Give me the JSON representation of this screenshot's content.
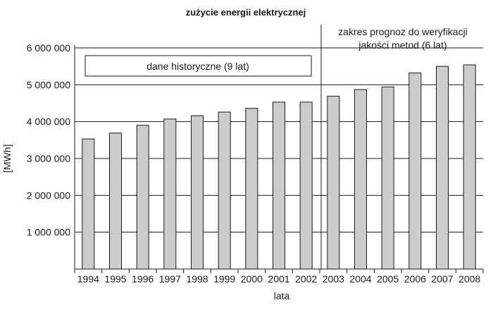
{
  "chart_data": {
    "type": "bar",
    "title": "zużycie energii elektrycznej",
    "xlabel": "lata",
    "ylabel": "[MWh]",
    "categories": [
      "1994",
      "1995",
      "1996",
      "1997",
      "1998",
      "1999",
      "2000",
      "2001",
      "2002",
      "2003",
      "2004",
      "2005",
      "2006",
      "2007",
      "2008"
    ],
    "values": [
      3530000,
      3690000,
      3900000,
      4070000,
      4160000,
      4260000,
      4360000,
      4530000,
      4530000,
      4690000,
      4870000,
      4940000,
      5320000,
      5500000,
      5540000
    ],
    "ylim": [
      0,
      6000000
    ],
    "yticks": [
      1000000,
      2000000,
      3000000,
      4000000,
      5000000,
      6000000
    ],
    "ytick_labels": [
      "1 000 000",
      "2 000 000",
      "3 000 000",
      "4 000 000",
      "5 000 000",
      "6 000 000"
    ],
    "grid": true,
    "bar_color": "#cccccc",
    "annotations": {
      "historical": "dane historyczne (9 lat)",
      "forecast_line1": "zakres prognoz do weryfikacji",
      "forecast_line2": "jakości metod (6 lat)"
    }
  }
}
